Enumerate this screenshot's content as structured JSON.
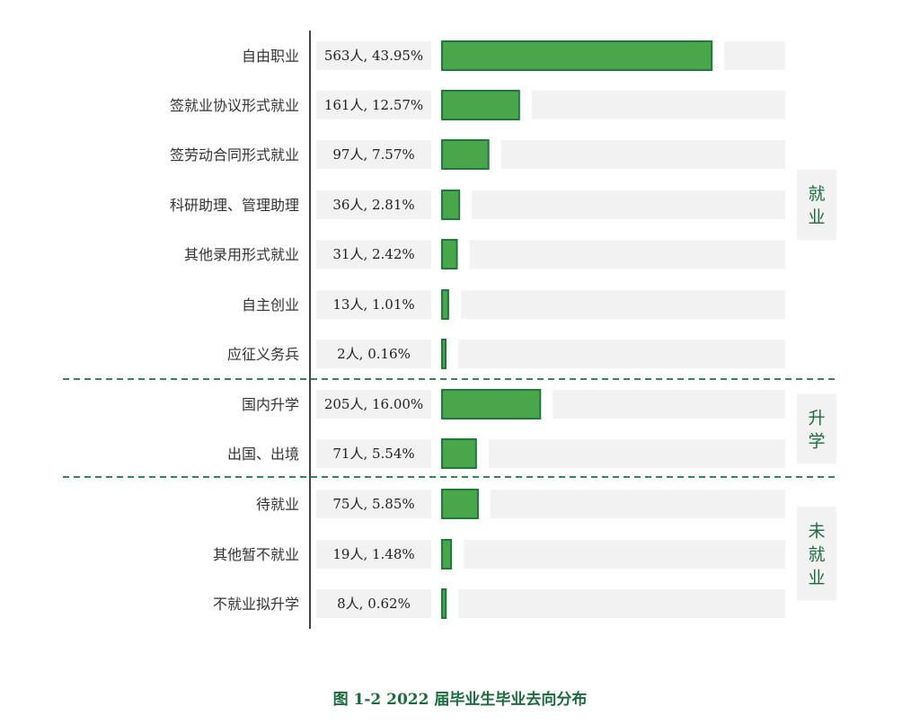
{
  "chart_data": {
    "type": "bar",
    "orientation": "horizontal",
    "title": "图 1-2  2022 届毕业生毕业去向分布",
    "categories": [
      "自由职业",
      "签就业协议形式就业",
      "签劳动合同形式就业",
      "科研助理、管理助理",
      "其他录用形式就业",
      "自主创业",
      "应征义务兵",
      "国内升学",
      "出国、出境",
      "待就业",
      "其他暂不就业",
      "不就业拟升学"
    ],
    "values": [
      43.95,
      12.57,
      7.57,
      2.81,
      2.42,
      1.01,
      0.16,
      16.0,
      5.54,
      5.85,
      1.48,
      0.62
    ],
    "counts": [
      563,
      161,
      97,
      36,
      31,
      13,
      2,
      205,
      71,
      75,
      19,
      8
    ],
    "value_labels": [
      "563人, 43.95%",
      "161人, 12.57%",
      "97人, 7.57%",
      "36人, 2.81%",
      "31人, 2.42%",
      "13人, 1.01%",
      "2人, 0.16%",
      "205人, 16.00%",
      "71人, 5.54%",
      "75人, 5.85%",
      "19人, 1.48%",
      "8人, 0.62%"
    ],
    "groups": [
      {
        "label": "就业",
        "start": 0,
        "end": 6
      },
      {
        "label": "升学",
        "start": 7,
        "end": 8
      },
      {
        "label": "未就业",
        "start": 9,
        "end": 11
      }
    ],
    "colors": {
      "bar_fill": "#4aa64a",
      "bar_stroke": "#1e7a3c",
      "track": "#f2f2f2",
      "label_box": "#f2f2f2",
      "group_box": "#f2f2f2",
      "divider": "#2e8b57",
      "axis": "#444444",
      "group_text": "#1b6b3e"
    }
  }
}
